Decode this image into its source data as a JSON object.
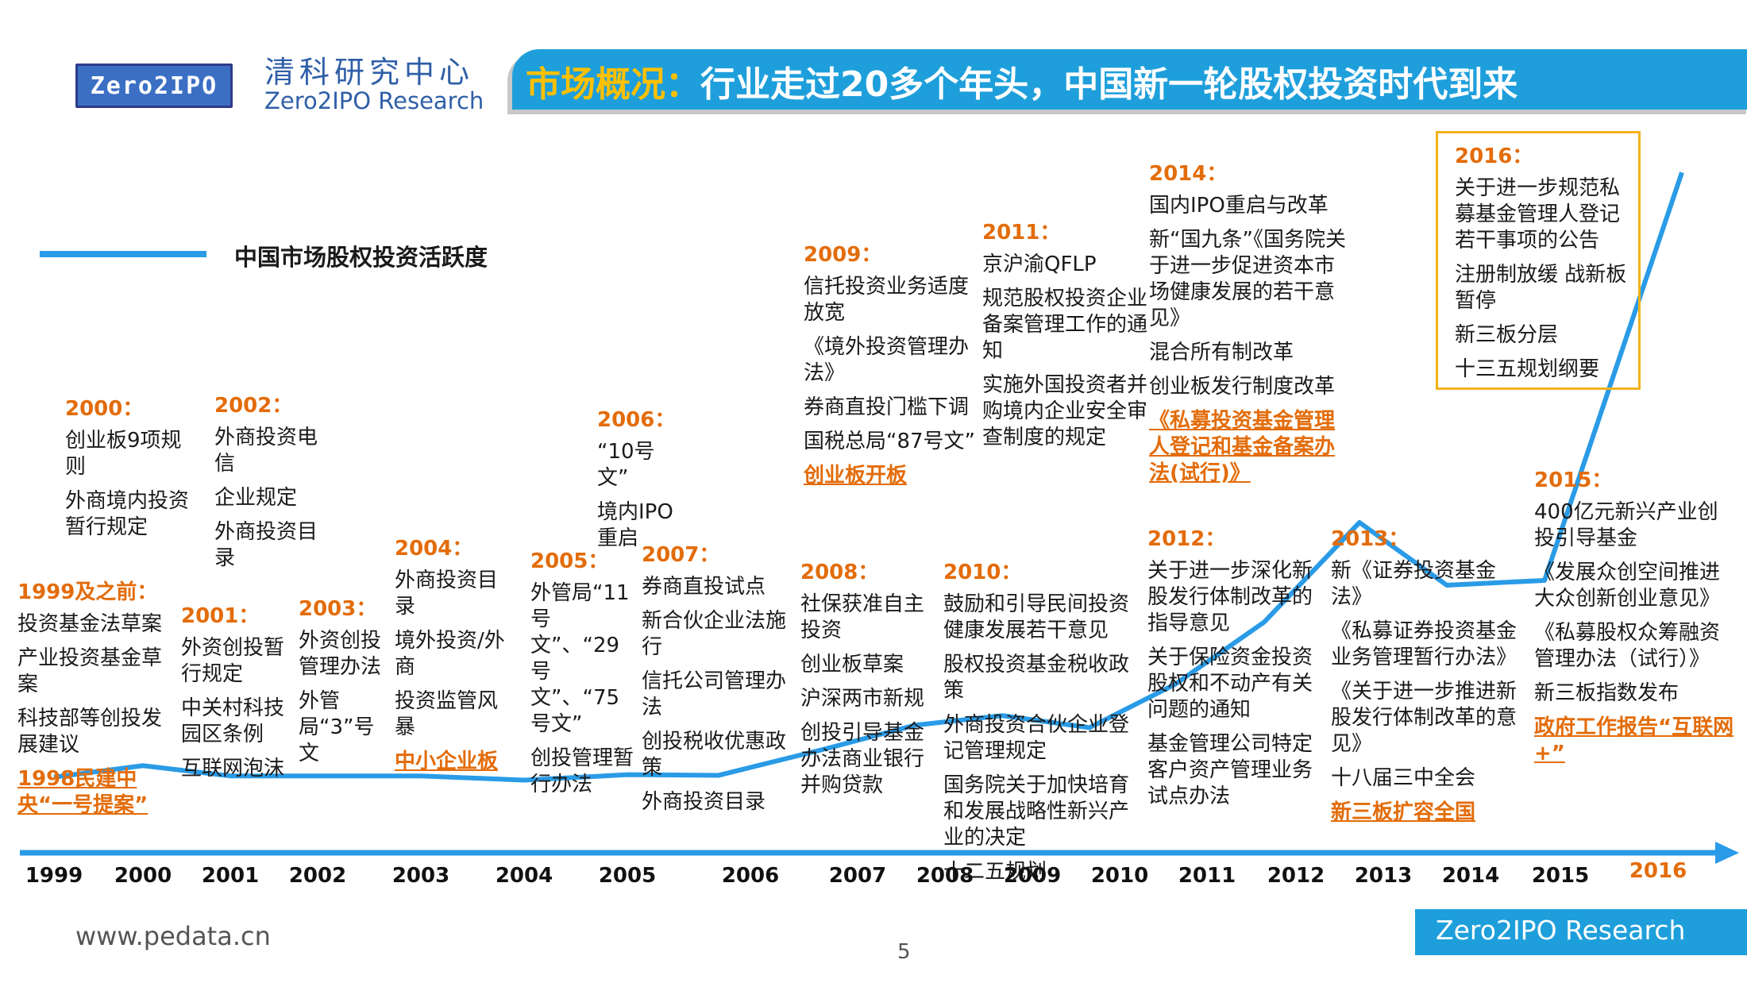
{
  "header": {
    "logo_text": "Zero2IPO",
    "org_cn": "清科研究中心",
    "org_en": "Zero2IPO Research",
    "title_accent": "市场概况：",
    "title_main": "行业走过20多个年头，中国新一轮股权投资时代到来"
  },
  "colors": {
    "accent": "#1e9fdb",
    "line": "#2a9be6",
    "highlight": "#e36c0a",
    "box": "#f2b21a"
  },
  "chart_data": {
    "type": "line",
    "title": "",
    "legend": [
      "中国市场股权投资活跃度"
    ],
    "x": [
      "1999",
      "2000",
      "2001",
      "2002",
      "2003",
      "2004",
      "2005",
      "2006",
      "2007",
      "2008",
      "2009",
      "2010",
      "2011",
      "2012",
      "2013",
      "2014",
      "2015",
      "2016"
    ],
    "series": [
      {
        "name": "中国市场股权投资活跃度",
        "values": [
          2.8,
          4.7,
          3.0,
          3.0,
          3.0,
          2.3,
          3.2,
          3.1,
          7.5,
          11.4,
          13.0,
          11.0,
          18.2,
          28.5,
          45.0,
          34.6,
          35.4,
          103.0
        ]
      }
    ],
    "ylim": [
      0,
      110
    ]
  },
  "annotations": [
    {
      "id": "a1999",
      "year": "1999及之前：",
      "events": [
        "投资基金法草案",
        "产业投资基金草案",
        "科技部等创投发展建议"
      ],
      "highlights": [
        "1998民建中央“一号提案”"
      ]
    },
    {
      "id": "a2000",
      "year": "2000：",
      "events": [
        "创业板9项规则",
        "外商境内投资暂行规定"
      ],
      "highlights": []
    },
    {
      "id": "a2001",
      "year": "2001：",
      "events": [
        "外资创投暂行规定",
        "中关村科技园区条例",
        "互联网泡沫"
      ],
      "highlights": []
    },
    {
      "id": "a2002",
      "year": "2002：",
      "events": [
        "外商投资电信",
        "企业规定",
        "外商投资目录"
      ],
      "highlights": []
    },
    {
      "id": "a2003",
      "year": "2003：",
      "events": [
        "外资创投管理办法",
        "外管局“3”号文"
      ],
      "highlights": []
    },
    {
      "id": "a2004",
      "year": "2004：",
      "events": [
        "外商投资目录",
        "境外投资/外商",
        "投资监管风暴"
      ],
      "highlights": [
        "中小企业板"
      ]
    },
    {
      "id": "a2005",
      "year": "2005：",
      "events": [
        "外管局“11号文”、“29号文”、“75号文”",
        "创投管理暂行办法"
      ],
      "highlights": []
    },
    {
      "id": "a2006",
      "year": "2006：",
      "events": [
        "“10号文”",
        "境内IPO重启"
      ],
      "highlights": []
    },
    {
      "id": "a2007",
      "year": "2007：",
      "events": [
        "券商直投试点",
        "新合伙企业法施行",
        "信托公司管理办法",
        "创投税收优惠政策",
        "外商投资目录"
      ],
      "highlights": []
    },
    {
      "id": "a2008",
      "year": "2008：",
      "events": [
        "社保获准自主投资",
        "创业板草案",
        "沪深两市新规",
        "创投引导基金办法商业银行并购贷款"
      ],
      "highlights": []
    },
    {
      "id": "a2009",
      "year": "2009：",
      "events": [
        "信托投资业务适度放宽",
        "《境外投资管理办法》",
        "券商直投门槛下调",
        "国税总局“87号文”"
      ],
      "highlights": [
        "创业板开板"
      ]
    },
    {
      "id": "a2010",
      "year": "2010：",
      "events": [
        "鼓励和引导民间投资健康发展若干意见",
        "股权投资基金税收政策",
        "外商投资合伙企业登记管理规定",
        "国务院关于加快培育和发展战略性新兴产业的决定",
        "十二五规划"
      ],
      "highlights": []
    },
    {
      "id": "a2011",
      "year": "2011：",
      "events": [
        "京沪渝QFLP",
        "规范股权投资企业备案管理工作的通知",
        "实施外国投资者并购境内企业安全审查制度的规定"
      ],
      "highlights": []
    },
    {
      "id": "a2012",
      "year": "2012：",
      "events": [
        "关于进一步深化新股发行体制改革的指导意见",
        "关于保险资金投资股权和不动产有关问题的通知",
        "基金管理公司特定客户资产管理业务试点办法"
      ],
      "highlights": []
    },
    {
      "id": "a2013",
      "year": "2013：",
      "events": [
        "新《证券投资基金法》",
        "《私募证券投资基金业务管理暂行办法》",
        "《关于进一步推进新股发行体制改革的意见》",
        "十八届三中全会"
      ],
      "highlights": [
        "新三板扩容全国"
      ]
    },
    {
      "id": "a2014",
      "year": "2014：",
      "events": [
        "国内IPO重启与改革",
        "新“国九条”《国务院关于进一步促进资本市场健康发展的若干意见》",
        "混合所有制改革",
        "创业板发行制度改革"
      ],
      "highlights": [
        "《私募投资基金管理人登记和基金备案办法(试行)》"
      ]
    },
    {
      "id": "a2015",
      "year": "2015：",
      "events": [
        "400亿元新兴产业创投引导基金",
        "《发展众创空间推进大众创新创业意见》",
        "《私募股权众筹融资管理办法（试行）》",
        "新三板指数发布"
      ],
      "highlights": [
        "政府工作报告“互联网+”"
      ]
    },
    {
      "id": "a2016",
      "year": "2016：",
      "events": [
        "关于进一步规范私募基金管理人登记若干事项的公告",
        "注册制放缓 战新板暂停",
        "新三板分层",
        "十三五规划纲要"
      ],
      "highlights": []
    }
  ],
  "footer": {
    "url": "www.pedata.cn",
    "page": "5",
    "brand": "Zero2IPO Research"
  }
}
